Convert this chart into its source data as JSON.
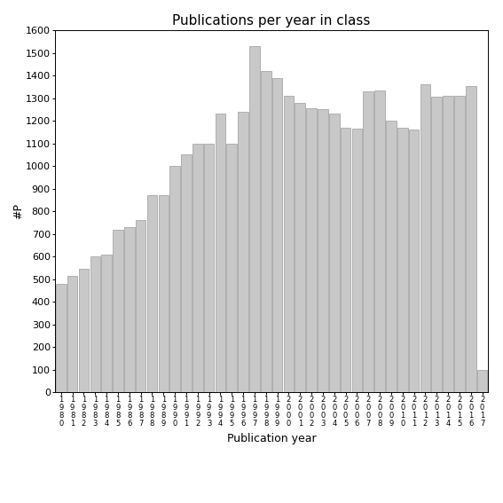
{
  "title": "Publications per year in class",
  "xlabel": "Publication year",
  "ylabel": "#P",
  "bar_color": "#c8c8c8",
  "bar_edgecolor": "#888888",
  "background_color": "#ffffff",
  "ylim": [
    0,
    1600
  ],
  "yticks": [
    0,
    100,
    200,
    300,
    400,
    500,
    600,
    700,
    800,
    900,
    1000,
    1100,
    1200,
    1300,
    1400,
    1500,
    1600
  ],
  "years": [
    1980,
    1981,
    1982,
    1983,
    1984,
    1985,
    1986,
    1987,
    1988,
    1989,
    1990,
    1991,
    1992,
    1993,
    1994,
    1995,
    1996,
    1997,
    1998,
    1999,
    2000,
    2001,
    2002,
    2003,
    2004,
    2005,
    2006,
    2007,
    2008,
    2009,
    2010,
    2011,
    2012,
    2013,
    2014,
    2015,
    2016,
    2017
  ],
  "values": [
    480,
    515,
    545,
    600,
    610,
    720,
    730,
    760,
    870,
    870,
    1000,
    1050,
    1100,
    1100,
    1230,
    1100,
    1240,
    1530,
    1420,
    1390,
    1310,
    1280,
    1255,
    1250,
    1230,
    1170,
    1165,
    1330,
    1335,
    1200,
    1170,
    1160,
    1360,
    1305,
    1310,
    1310,
    1355,
    100
  ],
  "title_fontsize": 11,
  "xlabel_fontsize": 9,
  "ylabel_fontsize": 9,
  "ytick_fontsize": 8,
  "xtick_fontsize": 6
}
